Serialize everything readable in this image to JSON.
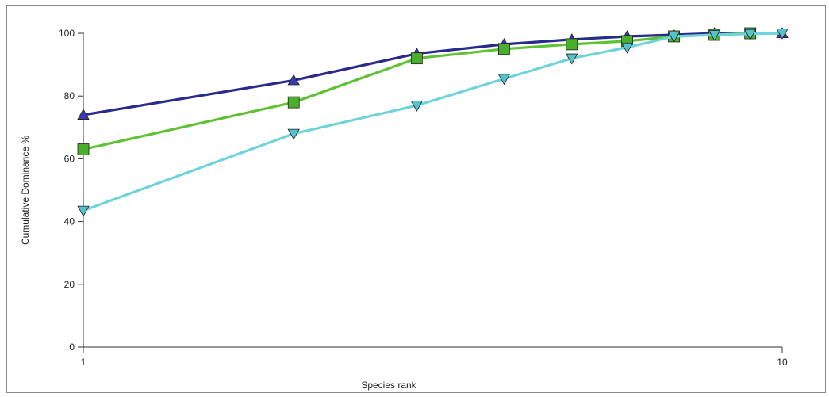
{
  "chart_data": {
    "type": "line",
    "x_scale": "log",
    "xlim": [
      1,
      10
    ],
    "ylim": [
      0,
      100
    ],
    "grid": false,
    "xlabel": "Species rank",
    "ylabel": "Cumulative Dominance %",
    "x_ticks": [
      "1",
      "10"
    ],
    "y_ticks": [
      "0",
      "20",
      "40",
      "60",
      "80",
      "100"
    ],
    "series": [
      {
        "marker": "triangle-up",
        "color": "#2a2a8c",
        "marker_color": "#3b3bb0",
        "points": [
          [
            1,
            74
          ],
          [
            2,
            85
          ],
          [
            3,
            93.5
          ],
          [
            4,
            96.5
          ],
          [
            5,
            98
          ],
          [
            6,
            99
          ],
          [
            7,
            99.5
          ],
          [
            8,
            100
          ],
          [
            9,
            100
          ],
          [
            10,
            100
          ]
        ]
      },
      {
        "marker": "square",
        "color": "#5ec234",
        "marker_color": "#4caf2b",
        "points": [
          [
            1,
            63
          ],
          [
            2,
            78
          ],
          [
            3,
            92
          ],
          [
            4,
            95
          ],
          [
            5,
            96.5
          ],
          [
            6,
            97.5
          ],
          [
            7,
            99
          ],
          [
            8,
            99.5
          ],
          [
            9,
            100
          ]
        ]
      },
      {
        "marker": "triangle-down",
        "color": "#6ed3da",
        "marker_color": "#55c3cc",
        "points": [
          [
            1,
            43.5
          ],
          [
            2,
            68
          ],
          [
            3,
            77
          ],
          [
            4,
            85.5
          ],
          [
            5,
            92
          ],
          [
            6,
            95.5
          ],
          [
            7,
            99
          ],
          [
            8,
            99.5
          ],
          [
            9,
            99.8
          ],
          [
            10,
            100
          ]
        ]
      }
    ]
  }
}
